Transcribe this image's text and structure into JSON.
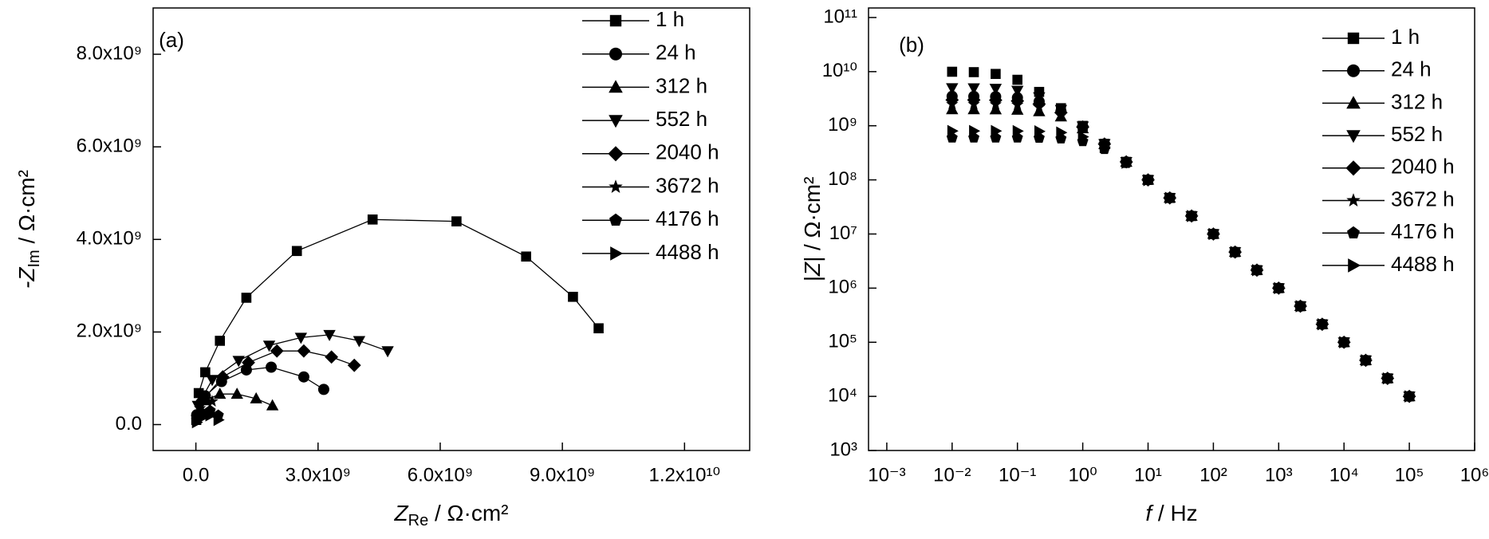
{
  "chart_data": [
    {
      "type": "scatter",
      "panel_label": "(a)",
      "xlabel": {
        "symbol": "Z",
        "sub": "Re",
        "unit": " / Ω·cm²"
      },
      "ylabel": {
        "symbol": "-Z",
        "sub": "Im",
        "unit": " / Ω·cm²"
      },
      "xlim": [
        -1050000000.0,
        13600000000.0
      ],
      "ylim": [
        -560000000.0,
        9000000000.0
      ],
      "xticks": [
        {
          "value": 0,
          "label": "0.0"
        },
        {
          "value": 3000000000.0,
          "label": "3.0x10⁹"
        },
        {
          "value": 6000000000.0,
          "label": "6.0x10⁹"
        },
        {
          "value": 9000000000.0,
          "label": "9.0x10⁹"
        },
        {
          "value": 12000000000.0,
          "label": "1.2x10¹⁰"
        }
      ],
      "yticks": [
        {
          "value": 0,
          "label": "0.0"
        },
        {
          "value": 2000000000.0,
          "label": "2.0x10⁹"
        },
        {
          "value": 4000000000.0,
          "label": "4.0x10⁹"
        },
        {
          "value": 6000000000.0,
          "label": "6.0x10⁹"
        },
        {
          "value": 8000000000.0,
          "label": "8.0x10⁹"
        }
      ],
      "lines": true,
      "legend": "upper right",
      "series": [
        {
          "name": "1 h",
          "color": "#000000",
          "marker": "square",
          "x": [
            10000000.0,
            70000000.0,
            230000000.0,
            590000000.0,
            1240000000.0,
            2480000000.0,
            4340000000.0,
            6400000000.0,
            8110000000.0,
            9260000000.0,
            9890000000.0
          ],
          "values": [
            100000000.0,
            680000000.0,
            1130000000.0,
            1810000000.0,
            2740000000.0,
            3750000000.0,
            4430000000.0,
            4390000000.0,
            3630000000.0,
            2760000000.0,
            2080000000.0
          ]
        },
        {
          "name": "24 h",
          "color": "#000000",
          "marker": "circle",
          "x": [
            20000000.0,
            230000000.0,
            630000000.0,
            1240000000.0,
            1850000000.0,
            2650000000.0,
            3140000000.0
          ],
          "values": [
            210000000.0,
            620000000.0,
            930000000.0,
            1180000000.0,
            1240000000.0,
            1030000000.0,
            760000000.0
          ]
        },
        {
          "name": "312 h",
          "color": "#000000",
          "marker": "triangle-up",
          "x": [
            50000000.0,
            230000000.0,
            590000000.0,
            1010000000.0,
            1480000000.0,
            1880000000.0
          ],
          "values": [
            210000000.0,
            520000000.0,
            660000000.0,
            660000000.0,
            560000000.0,
            410000000.0
          ]
        },
        {
          "name": "552 h",
          "color": "#000000",
          "marker": "triangle-down",
          "x": [
            50000000.0,
            400000000.0,
            1050000000.0,
            1800000000.0,
            2580000000.0,
            3280000000.0,
            4010000000.0,
            4710000000.0
          ],
          "values": [
            410000000.0,
            970000000.0,
            1380000000.0,
            1710000000.0,
            1880000000.0,
            1940000000.0,
            1810000000.0,
            1590000000.0
          ]
        },
        {
          "name": "2040 h",
          "color": "#000000",
          "marker": "diamond",
          "x": [
            160000000.0,
            660000000.0,
            1290000000.0,
            1990000000.0,
            2650000000.0,
            3330000000.0,
            3890000000.0
          ],
          "values": [
            520000000.0,
            1030000000.0,
            1340000000.0,
            1590000000.0,
            1590000000.0,
            1460000000.0,
            1280000000.0
          ]
        },
        {
          "name": "3672 h",
          "color": "#000000",
          "marker": "star",
          "x": [
            20000000.0,
            100000000.0,
            250000000.0,
            400000000.0
          ],
          "values": [
            150000000.0,
            350000000.0,
            550000000.0,
            500000000.0
          ]
        },
        {
          "name": "4176 h",
          "color": "#000000",
          "marker": "pentagon",
          "x": [
            20000000.0,
            150000000.0,
            350000000.0,
            550000000.0
          ],
          "values": [
            100000000.0,
            250000000.0,
            300000000.0,
            200000000.0
          ]
        },
        {
          "name": "4488 h",
          "color": "#000000",
          "marker": "triangle-right",
          "x": [
            20000000.0,
            150000000.0,
            350000000.0,
            550000000.0
          ],
          "values": [
            50000000.0,
            150000000.0,
            200000000.0,
            100000000.0
          ]
        }
      ]
    },
    {
      "type": "scatter",
      "panel_label": "(b)",
      "xlabel": {
        "symbol": "f",
        "unit": " / Hz"
      },
      "ylabel": {
        "symbol": "|Z|",
        "unit": " / Ω·cm²"
      },
      "log_x": true,
      "log_y": true,
      "xlim": [
        0.000525,
        1000000.0
      ],
      "ylim": [
        1000.0,
        150000000000.0
      ],
      "xticks": [
        {
          "value": 0.001,
          "label": "10⁻³"
        },
        {
          "value": 0.01,
          "label": "10⁻²"
        },
        {
          "value": 0.1,
          "label": "10⁻¹"
        },
        {
          "value": 1,
          "label": "10⁰"
        },
        {
          "value": 10,
          "label": "10¹"
        },
        {
          "value": 100,
          "label": "10²"
        },
        {
          "value": 1000,
          "label": "10³"
        },
        {
          "value": 10000,
          "label": "10⁴"
        },
        {
          "value": 100000,
          "label": "10⁵"
        },
        {
          "value": 1000000,
          "label": "10⁶"
        }
      ],
      "yticks": [
        {
          "value": 1000,
          "label": "10³"
        },
        {
          "value": 10000,
          "label": "10⁴"
        },
        {
          "value": 100000,
          "label": "10⁵"
        },
        {
          "value": 1000000,
          "label": "10⁶"
        },
        {
          "value": 10000000.0,
          "label": "10⁷"
        },
        {
          "value": 100000000.0,
          "label": "10⁸"
        },
        {
          "value": 1000000000.0,
          "label": "10⁹"
        },
        {
          "value": 10000000000.0,
          "label": "10¹⁰"
        },
        {
          "value": 100000000000.0,
          "label": "10¹¹"
        }
      ],
      "lines": false,
      "legend": "upper right",
      "x": [
        0.01,
        0.0215,
        0.0464,
        0.1,
        0.215,
        0.464,
        1,
        2.15,
        4.64,
        10,
        21.5,
        46.4,
        100,
        215,
        464,
        1000,
        2150,
        4640,
        10000,
        21500,
        46400,
        100000
      ],
      "series": [
        {
          "name": "1 h",
          "color": "#000000",
          "marker": "square",
          "values": [
            9950000000.0,
            9780000000.0,
            9070000000.0,
            7070000000.0,
            4220000000.0,
            2110000000.0,
            995000000.0,
            464000000.0,
            215000000.0,
            100000000.0,
            46400000.0,
            21500000.0,
            10000000.0,
            4640000.0,
            2150000.0,
            1000000.0,
            464000.0,
            215000.0,
            100000.0,
            46400.0,
            21500.0,
            10000.0
          ]
        },
        {
          "name": "24 h",
          "color": "#000000",
          "marker": "circle",
          "values": [
            3500000000.0,
            3490000000.0,
            3450000000.0,
            3300000000.0,
            2800000000.0,
            1840000000.0,
            960000000.0,
            462000000.0,
            215000000.0,
            100000000.0,
            46400000.0,
            21500000.0,
            10000000.0,
            4640000.0,
            2150000.0,
            1000000.0,
            464000.0,
            215000.0,
            100000.0,
            46400.0,
            21500.0,
            10000.0
          ]
        },
        {
          "name": "312 h",
          "color": "#000000",
          "marker": "triangle-up",
          "values": [
            2000000000.0,
            2000000000.0,
            1990000000.0,
            1960000000.0,
            1840000000.0,
            1470000000.0,
            890000000.0,
            453000000.0,
            214000000.0,
            100000000.0,
            46400000.0,
            21500000.0,
            10000000.0,
            4640000.0,
            2150000.0,
            1000000.0,
            464000.0,
            215000.0,
            100000.0,
            46400.0,
            21500.0,
            10000.0
          ]
        },
        {
          "name": "552 h",
          "color": "#000000",
          "marker": "triangle-down",
          "values": [
            4990000000.0,
            4970000000.0,
            4870000000.0,
            4470000000.0,
            3400000000.0,
            1980000000.0,
            980000000.0,
            463000000.0,
            215000000.0,
            100000000.0,
            46400000.0,
            21500000.0,
            10000000.0,
            4640000.0,
            2150000.0,
            1000000.0,
            464000.0,
            215000.0,
            100000.0,
            46400.0,
            21500.0,
            10000.0
          ]
        },
        {
          "name": "2040 h",
          "color": "#000000",
          "marker": "diamond",
          "values": [
            3000000000.0,
            2990000000.0,
            2970000000.0,
            2870000000.0,
            2520000000.0,
            1750000000.0,
            950000000.0,
            459000000.0,
            215000000.0,
            100000000.0,
            46400000.0,
            21500000.0,
            10000000.0,
            4640000.0,
            2150000.0,
            1000000.0,
            464000.0,
            215000.0,
            100000.0,
            46400.0,
            21500.0,
            10000.0
          ]
        },
        {
          "name": "3672 h",
          "color": "#000000",
          "marker": "star",
          "values": [
            2500000000.0,
            2500000000.0,
            2480000000.0,
            2430000000.0,
            2200000000.0,
            1640000000.0,
            930000000.0,
            455000000.0,
            215000000.0,
            100000000.0,
            46400000.0,
            21500000.0,
            10000000.0,
            4640000.0,
            2150000.0,
            1000000.0,
            464000.0,
            215000.0,
            100000.0,
            46400.0,
            21500.0,
            10000.0
          ]
        },
        {
          "name": "4176 h",
          "color": "#000000",
          "marker": "pentagon",
          "values": [
            600000000.0,
            600000000.0,
            600000000.0,
            599000000.0,
            595000000.0,
            578000000.0,
            514000000.0,
            368000000.0,
            203000000.0,
            99000000.0,
            46400000.0,
            21500000.0,
            10000000.0,
            4640000.0,
            2150000.0,
            1000000.0,
            464000.0,
            215000.0,
            100000.0,
            46400.0,
            21500.0,
            10000.0
          ]
        },
        {
          "name": "4488 h",
          "color": "#000000",
          "marker": "triangle-right",
          "values": [
            800000000.0,
            800000000.0,
            800000000.0,
            797000000.0,
            788000000.0,
            750000000.0,
            625000000.0,
            402000000.0,
            208000000.0,
            99000000.0,
            46400000.0,
            21500000.0,
            10000000.0,
            4640000.0,
            2150000.0,
            1000000.0,
            464000.0,
            215000.0,
            100000.0,
            46400.0,
            21500.0,
            10000.0
          ]
        }
      ]
    }
  ]
}
